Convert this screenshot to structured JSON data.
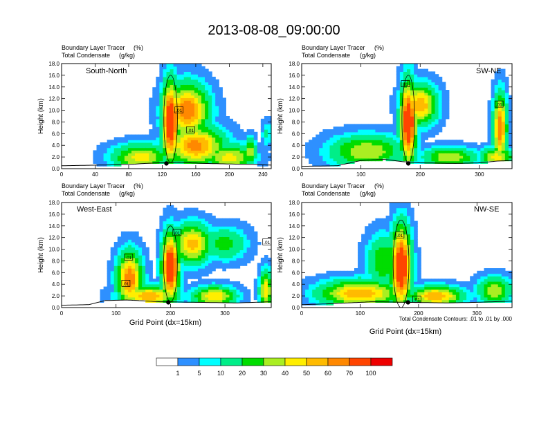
{
  "page": {
    "title": "2013-08-08_09:00:00"
  },
  "chart_data": [
    {
      "type": "heatmap",
      "panel_label": "South-North",
      "left_title_1": "Boundary Layer Tracer",
      "left_title_2": "Total Condensate",
      "right_title_1": "(%)",
      "right_title_2": "(g/kg)",
      "ylabel": "Height (km)",
      "xlabel": "",
      "xlim": [
        0,
        250
      ],
      "ylim": [
        0,
        18
      ],
      "xticks": [
        0,
        40,
        80,
        120,
        160,
        200,
        240
      ],
      "xtick_labels": [
        "0",
        "40",
        "80",
        "120",
        "160",
        "200",
        "240"
      ],
      "yticks": [
        0,
        2,
        4,
        6,
        8,
        10,
        12,
        14,
        16,
        18
      ],
      "ytick_labels": [
        "0.0",
        "2.0",
        "4.0",
        "6.0",
        "8.0",
        "10.0",
        "12.0",
        "14.0",
        "16.0",
        "18.0"
      ],
      "terrain": [
        [
          0,
          0.5
        ],
        [
          40,
          0.6
        ],
        [
          80,
          0.7
        ],
        [
          100,
          0.9
        ],
        [
          115,
          1.0
        ],
        [
          125,
          1.0
        ],
        [
          140,
          1.1
        ],
        [
          170,
          0.9
        ],
        [
          200,
          0.8
        ],
        [
          230,
          0.7
        ],
        [
          250,
          0.6
        ]
      ],
      "blobs": [
        {
          "x": 130,
          "y": 8,
          "sx": 9,
          "sy": 6,
          "v": 95
        },
        {
          "x": 150,
          "y": 10,
          "sx": 22,
          "sy": 4,
          "v": 70
        },
        {
          "x": 160,
          "y": 4,
          "sx": 30,
          "sy": 3,
          "v": 65
        },
        {
          "x": 95,
          "y": 2,
          "sx": 30,
          "sy": 2,
          "v": 45
        },
        {
          "x": 200,
          "y": 2,
          "sx": 25,
          "sy": 2,
          "v": 45
        },
        {
          "x": 225,
          "y": 3,
          "sx": 6,
          "sy": 2,
          "v": 40
        },
        {
          "x": 245,
          "y": 6,
          "sx": 6,
          "sy": 2,
          "v": 12
        }
      ],
      "marker": {
        "x": 125,
        "y": 0.9
      },
      "contour_labels": [
        {
          "text": ".01",
          "x": 140,
          "y": 10.0
        },
        {
          "text": ".01",
          "x": 154,
          "y": 6.6
        }
      ],
      "note": ""
    },
    {
      "type": "heatmap",
      "panel_label": "SW-NE",
      "left_title_1": "Boundary Layer Tracer",
      "left_title_2": "Total Condensate",
      "right_title_1": "(%)",
      "right_title_2": "(g/kg)",
      "ylabel": "Height (km)",
      "xlabel": "",
      "xlim": [
        0,
        355
      ],
      "ylim": [
        0,
        18
      ],
      "xticks": [
        0,
        100,
        200,
        300
      ],
      "xtick_labels": [
        "0",
        "100",
        "200",
        "300"
      ],
      "yticks": [
        0,
        2,
        4,
        6,
        8,
        10,
        12,
        14,
        16,
        18
      ],
      "ytick_labels": [
        "0.0",
        "2.0",
        "4.0",
        "6.0",
        "8.0",
        "10.0",
        "12.0",
        "14.0",
        "16.0",
        "18.0"
      ],
      "terrain": [
        [
          0,
          0.4
        ],
        [
          60,
          0.5
        ],
        [
          100,
          1.4
        ],
        [
          140,
          1.6
        ],
        [
          170,
          1.2
        ],
        [
          200,
          1.0
        ],
        [
          260,
          0.9
        ],
        [
          300,
          1.0
        ],
        [
          330,
          1.3
        ],
        [
          355,
          1.4
        ]
      ],
      "blobs": [
        {
          "x": 180,
          "y": 8,
          "sx": 12,
          "sy": 6,
          "v": 95
        },
        {
          "x": 200,
          "y": 11,
          "sx": 25,
          "sy": 3,
          "v": 60
        },
        {
          "x": 110,
          "y": 3,
          "sx": 55,
          "sy": 2.5,
          "v": 40
        },
        {
          "x": 250,
          "y": 2,
          "sx": 40,
          "sy": 1.5,
          "v": 40
        },
        {
          "x": 335,
          "y": 7,
          "sx": 10,
          "sy": 5,
          "v": 70
        },
        {
          "x": 330,
          "y": 2,
          "sx": 25,
          "sy": 1.5,
          "v": 45
        }
      ],
      "marker": {
        "x": 180,
        "y": 0.9
      },
      "contour_labels": [
        {
          "text": ".01",
          "x": 175,
          "y": 14.5
        },
        {
          "text": ".01",
          "x": 333,
          "y": 11.0
        }
      ],
      "note": ""
    },
    {
      "type": "heatmap",
      "panel_label": "West-East",
      "left_title_1": "Boundary Layer Tracer",
      "left_title_2": "Total Condensate",
      "right_title_1": "(%)",
      "right_title_2": "(g/kg)",
      "ylabel": "Height (km)",
      "xlabel": "Grid Point (dx=15km)",
      "xlim": [
        0,
        385
      ],
      "ylim": [
        0,
        18
      ],
      "xticks": [
        0,
        100,
        200,
        300
      ],
      "xtick_labels": [
        "0",
        "100",
        "200",
        "300"
      ],
      "yticks": [
        0,
        2,
        4,
        6,
        8,
        10,
        12,
        14,
        16,
        18
      ],
      "ytick_labels": [
        "0.0",
        "2.0",
        "4.0",
        "6.0",
        "8.0",
        "10.0",
        "12.0",
        "14.0",
        "16.0",
        "18.0"
      ],
      "terrain": [
        [
          0,
          0.4
        ],
        [
          50,
          0.5
        ],
        [
          80,
          1.2
        ],
        [
          120,
          1.3
        ],
        [
          180,
          1.0
        ],
        [
          250,
          0.9
        ],
        [
          320,
          0.8
        ],
        [
          385,
          1.0
        ]
      ],
      "blobs": [
        {
          "x": 200,
          "y": 7,
          "sx": 14,
          "sy": 5,
          "v": 95
        },
        {
          "x": 240,
          "y": 11,
          "sx": 30,
          "sy": 3,
          "v": 55
        },
        {
          "x": 300,
          "y": 11,
          "sx": 35,
          "sy": 2.5,
          "v": 25
        },
        {
          "x": 125,
          "y": 5,
          "sx": 20,
          "sy": 4,
          "v": 70
        },
        {
          "x": 160,
          "y": 2,
          "sx": 45,
          "sy": 1.5,
          "v": 60
        },
        {
          "x": 280,
          "y": 2,
          "sx": 35,
          "sy": 1.5,
          "v": 50
        },
        {
          "x": 375,
          "y": 3,
          "sx": 10,
          "sy": 3,
          "v": 50
        }
      ],
      "marker": {
        "x": 196,
        "y": 0.9
      },
      "contour_labels": [
        {
          "text": ".01",
          "x": 212,
          "y": 12.8
        },
        {
          "text": ".01",
          "x": 123,
          "y": 8.6
        },
        {
          "text": ".01",
          "x": 118,
          "y": 4.1
        },
        {
          "text": ".01",
          "x": 377,
          "y": 11.2
        }
      ],
      "note": ""
    },
    {
      "type": "heatmap",
      "panel_label": "NW-SE",
      "left_title_1": "Boundary Layer Tracer",
      "left_title_2": "Total Condensate",
      "right_title_1": "(%)",
      "right_title_2": "(g/kg)",
      "ylabel": "Height (km)",
      "xlabel": "Grid Point (dx=15km)",
      "xlim": [
        0,
        360
      ],
      "ylim": [
        0,
        18
      ],
      "xticks": [
        0,
        100,
        200,
        300
      ],
      "xtick_labels": [
        "0",
        "100",
        "200",
        "300"
      ],
      "yticks": [
        0,
        2,
        4,
        6,
        8,
        10,
        12,
        14,
        16,
        18
      ],
      "ytick_labels": [
        "0.0",
        "2.0",
        "4.0",
        "6.0",
        "8.0",
        "10.0",
        "12.0",
        "14.0",
        "16.0",
        "18.0"
      ],
      "terrain": [
        [
          0,
          0.5
        ],
        [
          60,
          0.7
        ],
        [
          120,
          1.0
        ],
        [
          180,
          0.9
        ],
        [
          250,
          0.8
        ],
        [
          300,
          0.9
        ],
        [
          360,
          1.1
        ]
      ],
      "blobs": [
        {
          "x": 170,
          "y": 7,
          "sx": 15,
          "sy": 6,
          "v": 95
        },
        {
          "x": 100,
          "y": 2.5,
          "sx": 60,
          "sy": 2,
          "v": 60
        },
        {
          "x": 230,
          "y": 2,
          "sx": 40,
          "sy": 1.5,
          "v": 60
        },
        {
          "x": 140,
          "y": 8,
          "sx": 25,
          "sy": 4,
          "v": 30
        },
        {
          "x": 330,
          "y": 3,
          "sx": 25,
          "sy": 2,
          "v": 40
        }
      ],
      "marker": {
        "x": 182,
        "y": 0.9
      },
      "contour_labels": [
        {
          "text": ".01",
          "x": 168,
          "y": 12.4
        },
        {
          "text": ".01",
          "x": 197,
          "y": 1.4
        }
      ],
      "note": "Total Condensate Contours: .01 to .01 by .000"
    }
  ],
  "colorbar": {
    "colors": [
      "#ffffff",
      "#2e90ff",
      "#00ffff",
      "#00ee88",
      "#00dd00",
      "#aaee22",
      "#ffee00",
      "#ffbb00",
      "#ff8800",
      "#ff4400",
      "#ee0000"
    ],
    "labels": [
      "1",
      "5",
      "10",
      "20",
      "30",
      "40",
      "50",
      "60",
      "70",
      "100"
    ]
  }
}
